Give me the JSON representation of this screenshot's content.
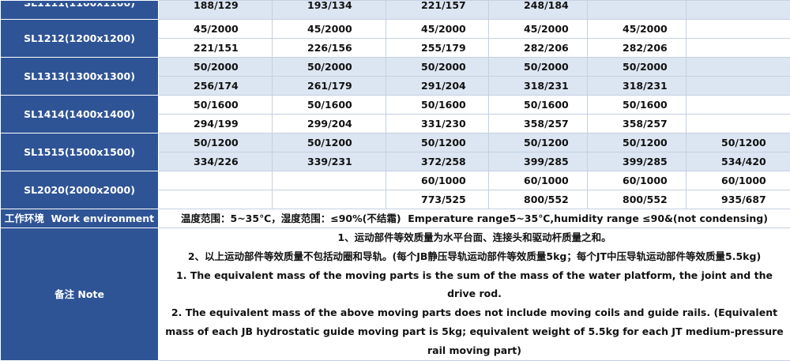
{
  "groups": [
    {
      "label": "SL1111(1100x1100)",
      "rows": [
        [
          "188/129",
          "193/134",
          "221/157",
          "248/184",
          null,
          null
        ]
      ]
    },
    {
      "label": "SL1212(1200x1200)",
      "rows": [
        [
          "45/2000",
          "45/2000",
          "45/2000",
          "45/2000",
          "45/2000",
          null
        ],
        [
          "221/151",
          "226/156",
          "255/179",
          "282/206",
          "282/206",
          null
        ]
      ]
    },
    {
      "label": "SL1313(1300x1300)",
      "rows": [
        [
          "50/2000",
          "50/2000",
          "50/2000",
          "50/2000",
          "50/2000",
          null
        ],
        [
          "256/174",
          "261/179",
          "291/204",
          "318/231",
          "318/231",
          null
        ]
      ]
    },
    {
      "label": "SL1414(1400x1400)",
      "rows": [
        [
          "50/1600",
          "50/1600",
          "50/1600",
          "50/1600",
          "50/1600",
          null
        ],
        [
          "294/199",
          "299/204",
          "331/230",
          "358/257",
          "358/257",
          null
        ]
      ]
    },
    {
      "label": "SL1515(1500x1500)",
      "rows": [
        [
          "50/1200",
          "50/1200",
          "50/1200",
          "50/1200",
          "50/1200",
          "50/1200"
        ],
        [
          "334/226",
          "339/231",
          "372/258",
          "399/285",
          "399/285",
          "534/420"
        ]
      ]
    },
    {
      "label": "SL2020(2000x2000)",
      "rows": [
        [
          null,
          null,
          "60/1000",
          "60/1000",
          "60/1000",
          "60/1000"
        ],
        [
          null,
          null,
          "773/525",
          "800/552",
          "800/552",
          "935/687"
        ]
      ]
    }
  ],
  "environment": {
    "label": "工作环境  Work environment",
    "text": "温度范围：5~35℃，湿度范围：≤90%(不结霜)  Emperature range5~35℃,humidity range ≤90&(not condensing)"
  },
  "note": {
    "label": "备注 Note",
    "lines": [
      "1、运动部件等效质量为水平台面、连接头和驱动杆质量之和。",
      "2、以上运动部件等效质量不包括动圈和导轨。(每个JB静压导轨运动部件等效质量5kg；每个JT中压导轨运动部件等效质量5.5kg)",
      "1. The equivalent mass of the moving parts is the sum of the mass of the water platform, the joint and the drive rod.",
      "2. The equivalent mass of the above moving parts does not include moving coils and guide rails. (Equivalent mass of each JB hydrostatic guide moving part is 5kg; equivalent weight of 5.5kg for each JT medium-pressure rail moving part)"
    ]
  }
}
